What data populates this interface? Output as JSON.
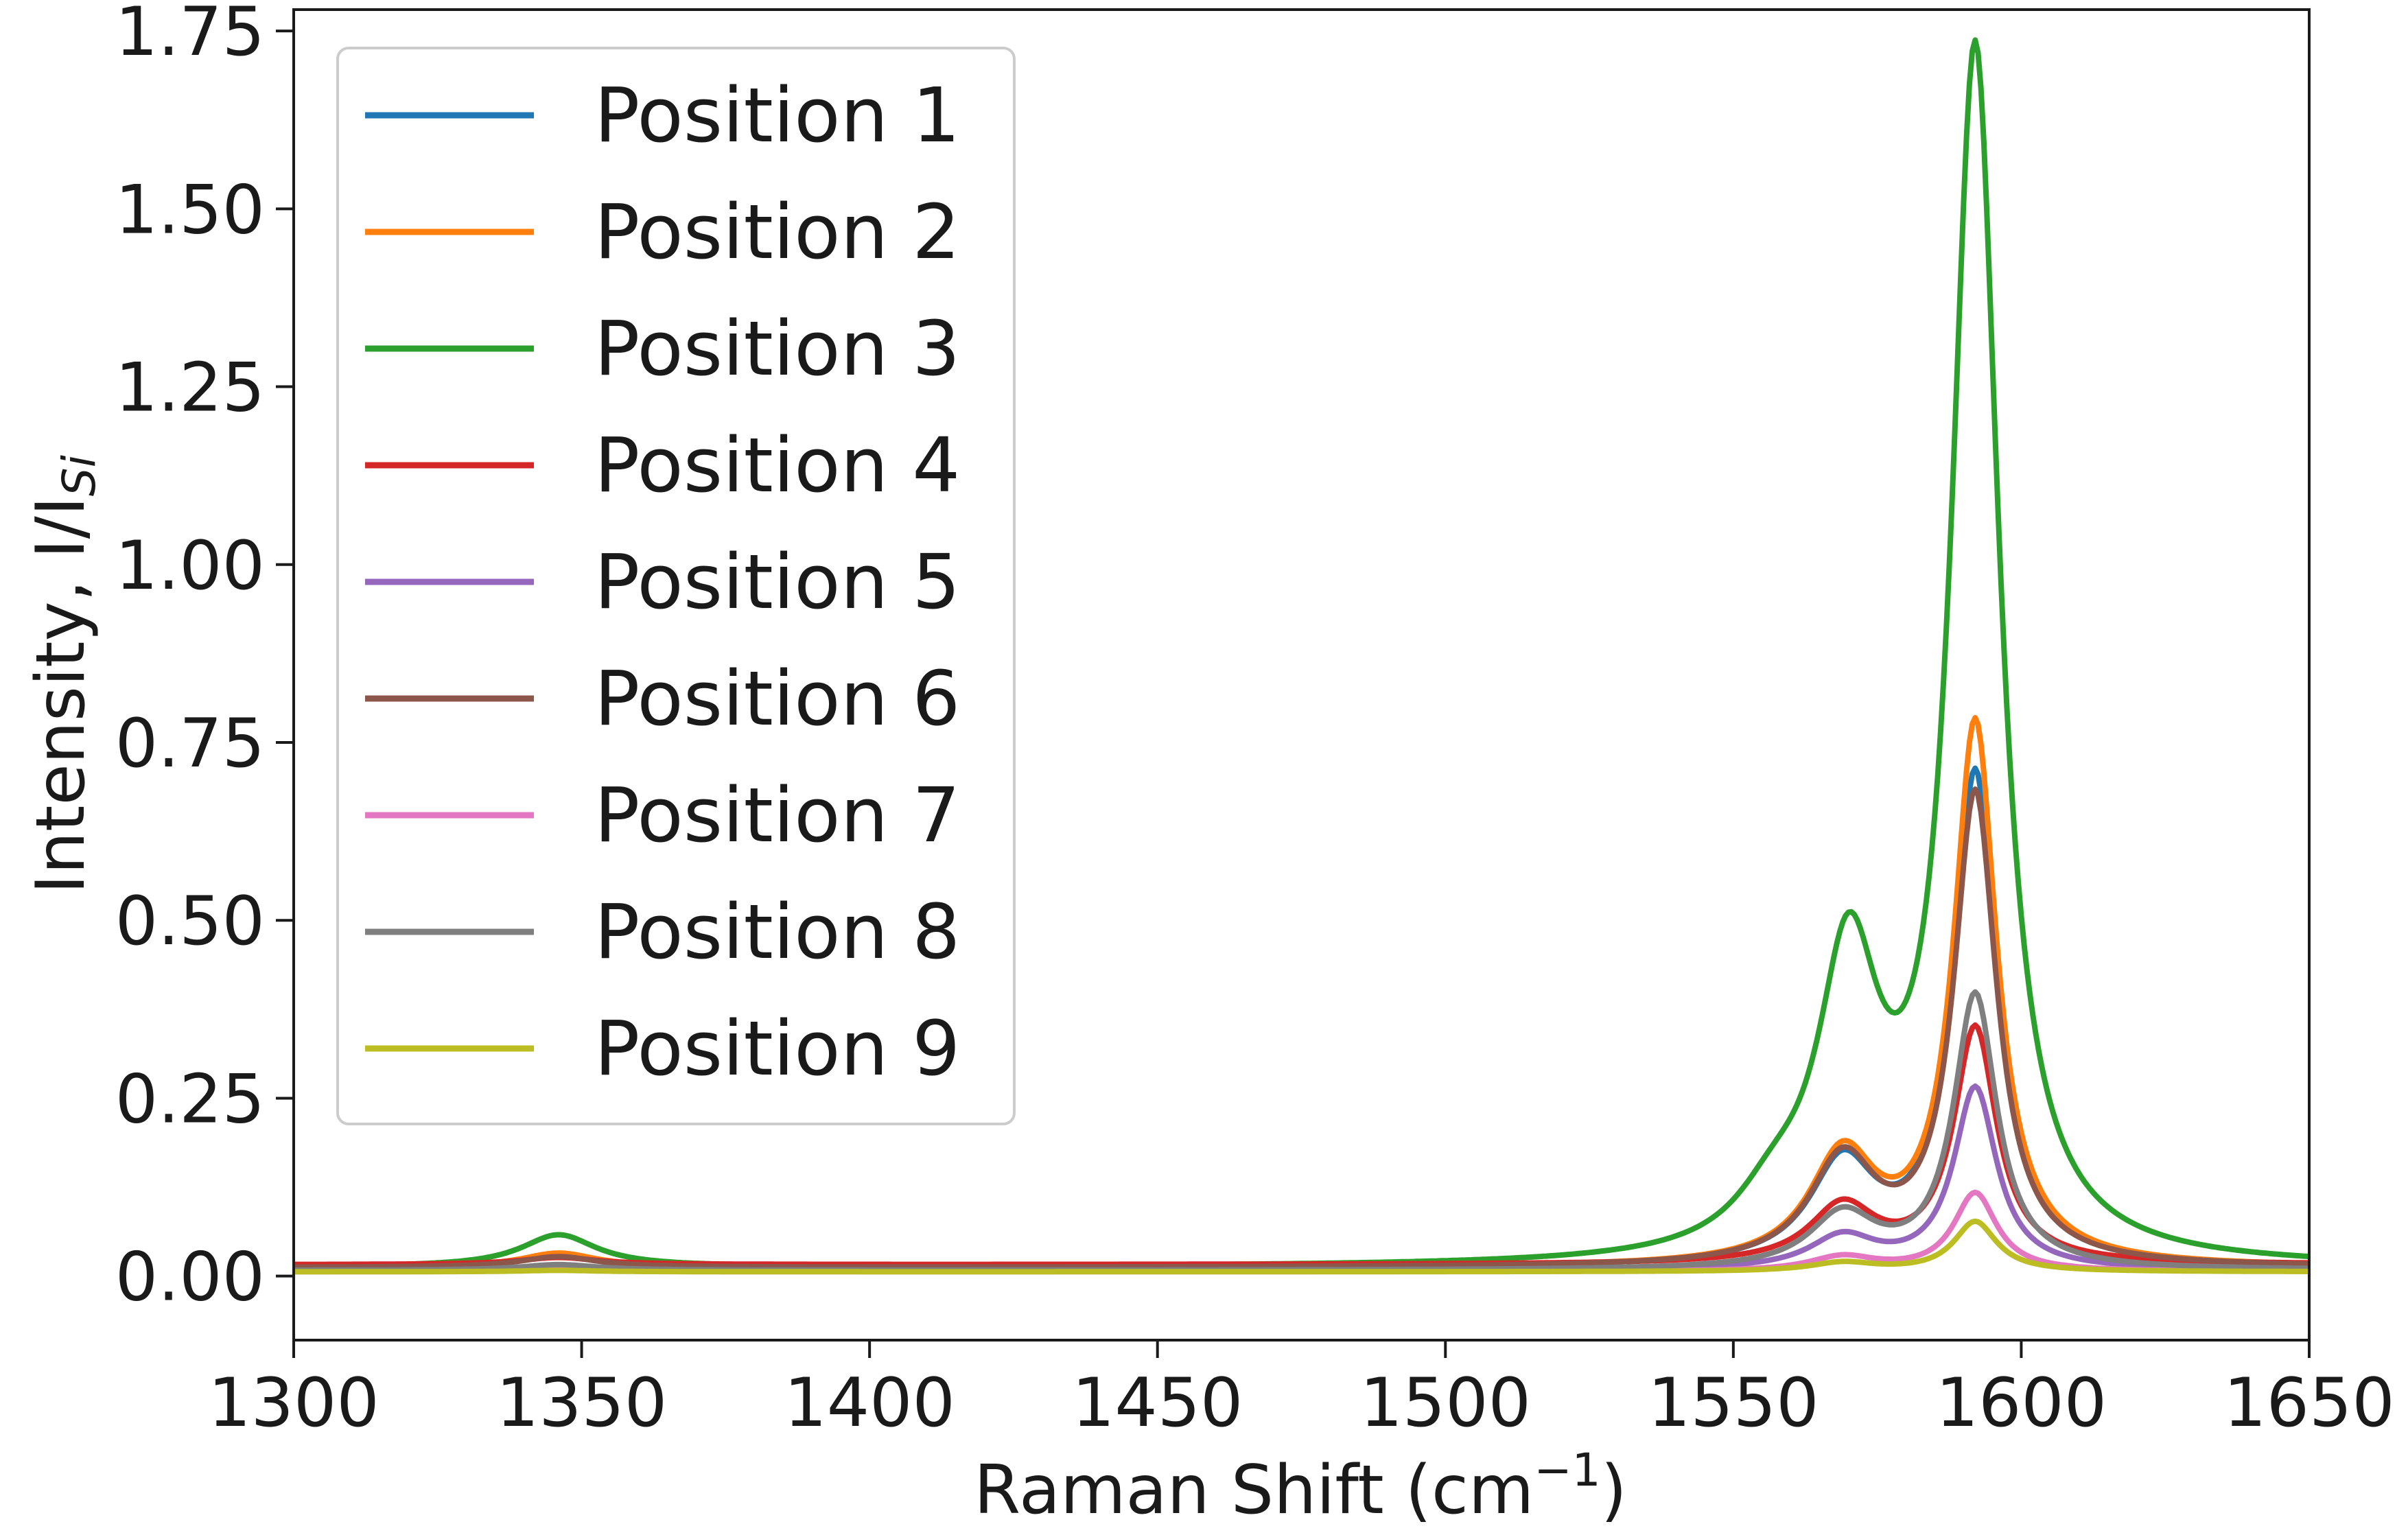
{
  "chart_data": {
    "type": "line",
    "title": "",
    "xlabel": "Raman Shift (cm",
    "xlabel_superscript": "−1",
    "xlabel_suffix": ")",
    "ylabel": "Intensity, I/I",
    "ylabel_subscript": "Si",
    "xlim": [
      1300,
      1650
    ],
    "ylim": [
      -0.09,
      1.78
    ],
    "grid": false,
    "legend_position": "top-left",
    "x_ticks": [
      1300,
      1350,
      1400,
      1450,
      1500,
      1550,
      1600,
      1650
    ],
    "x_tick_labels": [
      "1300",
      "1350",
      "1400",
      "1450",
      "1500",
      "1550",
      "1600",
      "1650"
    ],
    "y_ticks": [
      0.0,
      0.25,
      0.5,
      0.75,
      1.0,
      1.25,
      1.5,
      1.75
    ],
    "y_tick_labels": [
      "0.00",
      "0.25",
      "0.50",
      "0.75",
      "1.00",
      "1.25",
      "1.50",
      "1.75"
    ],
    "series": [
      {
        "name": "Position 1",
        "color": "#1f77b4",
        "baseline": 0.012,
        "peaks": [
          {
            "center": 1346,
            "height": 0.018,
            "width": 8
          },
          {
            "center": 1569,
            "height": 0.14,
            "width": 7
          },
          {
            "center": 1592,
            "height": 0.69,
            "width": 4.5
          }
        ]
      },
      {
        "name": "Position 2",
        "color": "#ff7f0e",
        "baseline": 0.012,
        "peaks": [
          {
            "center": 1346,
            "height": 0.02,
            "width": 8
          },
          {
            "center": 1569,
            "height": 0.15,
            "width": 7
          },
          {
            "center": 1592,
            "height": 0.76,
            "width": 4.5
          }
        ]
      },
      {
        "name": "Position 3",
        "color": "#2ca02c",
        "baseline": 0.012,
        "peaks": [
          {
            "center": 1346,
            "height": 0.045,
            "width": 8
          },
          {
            "center": 1557,
            "height": 0.06,
            "width": 8
          },
          {
            "center": 1570,
            "height": 0.4,
            "width": 6.5
          },
          {
            "center": 1592,
            "height": 1.69,
            "width": 5
          }
        ]
      },
      {
        "name": "Position 4",
        "color": "#d62728",
        "baseline": 0.016,
        "peaks": [
          {
            "center": 1346,
            "height": 0.01,
            "width": 8
          },
          {
            "center": 1569,
            "height": 0.08,
            "width": 7
          },
          {
            "center": 1592,
            "height": 0.33,
            "width": 4.5
          }
        ]
      },
      {
        "name": "Position 5",
        "color": "#9467bd",
        "baseline": 0.008,
        "peaks": [
          {
            "center": 1346,
            "height": 0.006,
            "width": 8
          },
          {
            "center": 1569,
            "height": 0.045,
            "width": 7
          },
          {
            "center": 1592,
            "height": 0.255,
            "width": 4.5
          }
        ]
      },
      {
        "name": "Position 6",
        "color": "#8c564b",
        "baseline": 0.012,
        "peaks": [
          {
            "center": 1346,
            "height": 0.015,
            "width": 8
          },
          {
            "center": 1569,
            "height": 0.145,
            "width": 7
          },
          {
            "center": 1592,
            "height": 0.66,
            "width": 4.5
          }
        ]
      },
      {
        "name": "Position 7",
        "color": "#e377c2",
        "baseline": 0.006,
        "peaks": [
          {
            "center": 1346,
            "height": 0.003,
            "width": 8
          },
          {
            "center": 1569,
            "height": 0.02,
            "width": 7
          },
          {
            "center": 1592,
            "height": 0.11,
            "width": 4.5
          }
        ]
      },
      {
        "name": "Position 8",
        "color": "#7f7f7f",
        "baseline": 0.008,
        "peaks": [
          {
            "center": 1346,
            "height": 0.008,
            "width": 8
          },
          {
            "center": 1569,
            "height": 0.075,
            "width": 7
          },
          {
            "center": 1592,
            "height": 0.385,
            "width": 4.5
          }
        ]
      },
      {
        "name": "Position 9",
        "color": "#bcbd22",
        "baseline": 0.006,
        "peaks": [
          {
            "center": 1346,
            "height": 0.002,
            "width": 8
          },
          {
            "center": 1569,
            "height": 0.012,
            "width": 7
          },
          {
            "center": 1592,
            "height": 0.07,
            "width": 4.5
          }
        ]
      }
    ]
  }
}
